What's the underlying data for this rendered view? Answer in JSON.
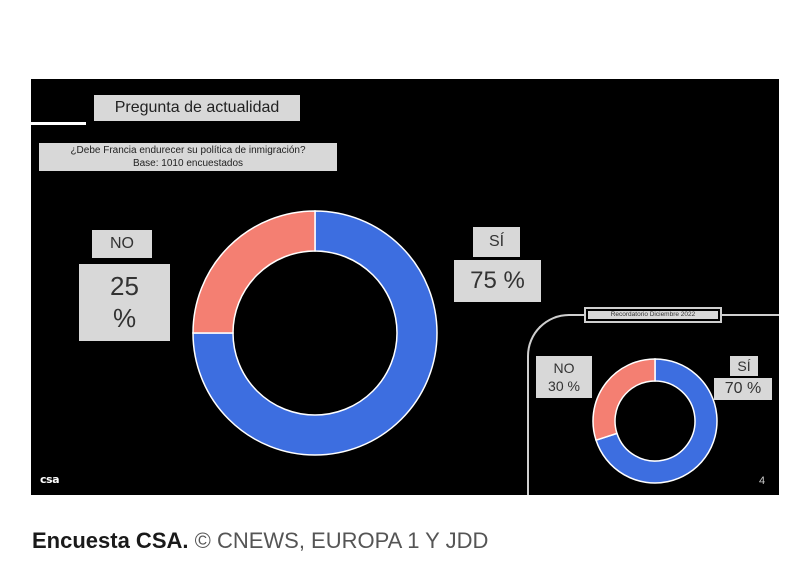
{
  "slide": {
    "title": "Pregunta de actualidad",
    "question_line1": "¿Debe Francia endurecer su política de inmigración?",
    "question_line2": "Base: 1010 encuestados",
    "logo": "csa",
    "page_number": "4"
  },
  "main_labels": {
    "no_label": "NO",
    "no_value_num": "25",
    "no_value_pct": "%",
    "si_label": "SÍ",
    "si_value": "75 %"
  },
  "reminder": {
    "title": "Recordatorio Diciembre 2022",
    "no_label": "NO",
    "no_value": "30 %",
    "si_label": "SÍ",
    "si_value": "70 %"
  },
  "caption": {
    "bold": "Encuesta CSA.",
    "credit": "© CNEWS, EUROPA 1 Y JDD"
  },
  "colors": {
    "si": "#3d6ee0",
    "no": "#f47f72",
    "background": "#000000",
    "label_bg": "#d8d8d8"
  },
  "chart_data": [
    {
      "type": "pie",
      "title": "Pregunta de actualidad",
      "categories": [
        "SÍ",
        "NO"
      ],
      "values": [
        75,
        25
      ],
      "colors": [
        "#3d6ee0",
        "#f47f72"
      ]
    },
    {
      "type": "pie",
      "title": "Recordatorio Diciembre 2022",
      "categories": [
        "SÍ",
        "NO"
      ],
      "values": [
        70,
        30
      ],
      "colors": [
        "#3d6ee0",
        "#f47f72"
      ]
    }
  ]
}
